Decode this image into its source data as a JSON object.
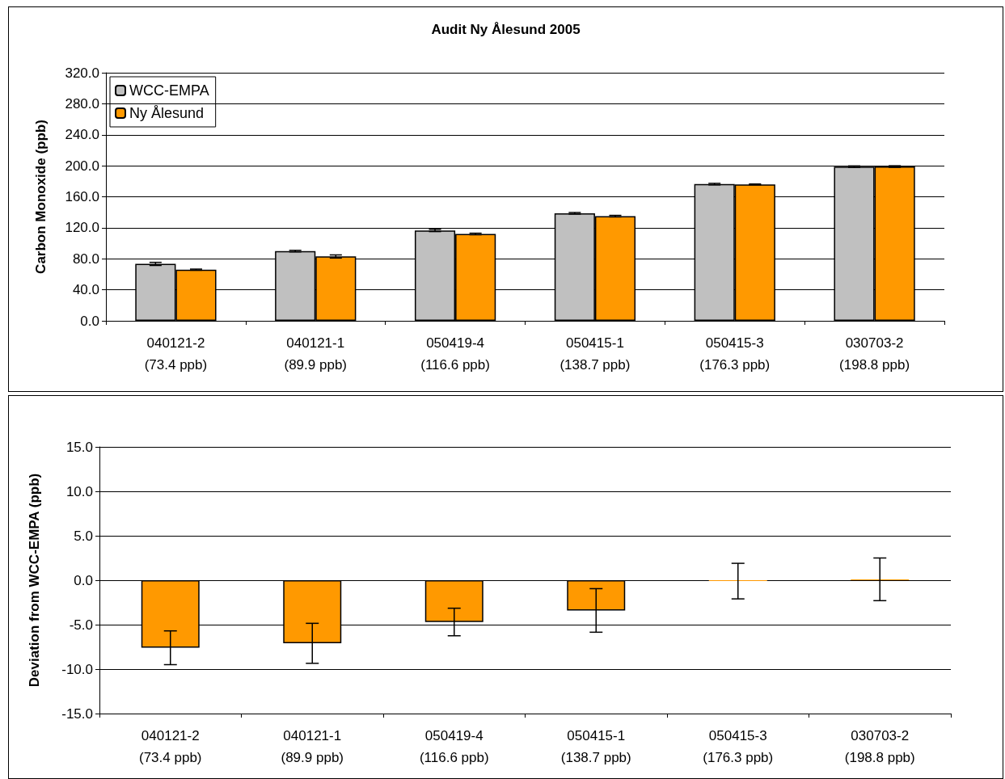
{
  "chart_data": [
    {
      "type": "bar",
      "title": "Audit Ny Ålesund 2005",
      "ylabel": "Carbon Monoxide (ppb)",
      "categories": [
        "040121-2\n(73.4 ppb)",
        "040121-1\n(89.9 ppb)",
        "050419-4\n(116.6 ppb)",
        "050415-1\n(138.7 ppb)",
        "050415-3\n(176.3 ppb)",
        "030703-2\n(198.8 ppb)"
      ],
      "series": [
        {
          "name": "WCC-EMPA",
          "color": "#c0c0c0",
          "values": [
            73.4,
            89.9,
            116.6,
            138.7,
            176.3,
            198.8
          ],
          "errors": [
            2,
            1,
            1.5,
            1,
            1,
            1
          ]
        },
        {
          "name": "Ny Ålesund",
          "color": "#ff9900",
          "values": [
            66,
            83,
            112,
            135,
            176,
            199
          ],
          "errors": [
            0.7,
            2,
            1,
            1,
            0.5,
            1
          ]
        }
      ],
      "ylim": [
        0,
        320
      ],
      "yticks": [
        {
          "value": 0,
          "label": "0.0"
        },
        {
          "value": 40,
          "label": "40.0"
        },
        {
          "value": 80,
          "label": "80.0"
        },
        {
          "value": 120,
          "label": "120.0"
        },
        {
          "value": 160,
          "label": "160.0"
        },
        {
          "value": 200,
          "label": "200.0"
        },
        {
          "value": 240,
          "label": "240.0"
        },
        {
          "value": 280,
          "label": "280.0"
        },
        {
          "value": 320,
          "label": "320.0"
        }
      ],
      "grid": "y",
      "legend": "top left"
    },
    {
      "type": "bar",
      "ylabel": "Deviation from WCC-EMPA (ppb)",
      "categories": [
        "040121-2\n(73.4 ppb)",
        "040121-1\n(89.9 ppb)",
        "050419-4\n(116.6 ppb)",
        "050415-1\n(138.7 ppb)",
        "050415-3\n(176.3 ppb)",
        "030703-2\n(198.8 ppb)"
      ],
      "series": [
        {
          "color": "#ff9900",
          "values": [
            -7.6,
            -7.1,
            -4.7,
            -3.4,
            -0.1,
            0.1
          ],
          "errors": [
            1.9,
            2.25,
            1.55,
            2.45,
            2,
            2.4
          ]
        }
      ],
      "ylim": [
        -15,
        15
      ],
      "yticks": [
        {
          "value": -15,
          "label": "-15.0"
        },
        {
          "value": -10,
          "label": "-10.0"
        },
        {
          "value": -5,
          "label": "-5.0"
        },
        {
          "value": 0,
          "label": "0.0"
        },
        {
          "value": 5,
          "label": "5.0"
        },
        {
          "value": 10,
          "label": "10.0"
        },
        {
          "value": 15,
          "label": "15.0"
        }
      ],
      "grid": "y"
    }
  ]
}
